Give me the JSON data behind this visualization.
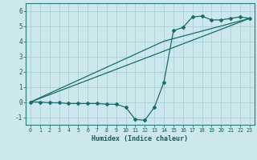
{
  "xlabel": "Humidex (Indice chaleur)",
  "background_color": "#cce8ec",
  "grid_color": "#b0d4d8",
  "line_color": "#1a6b6b",
  "xlim": [
    -0.5,
    23.5
  ],
  "ylim": [
    -1.5,
    6.5
  ],
  "yticks": [
    -1,
    0,
    1,
    2,
    3,
    4,
    5,
    6
  ],
  "xticks": [
    0,
    1,
    2,
    3,
    4,
    5,
    6,
    7,
    8,
    9,
    10,
    11,
    12,
    13,
    14,
    15,
    16,
    17,
    18,
    19,
    20,
    21,
    22,
    23
  ],
  "line1_x": [
    0,
    1,
    2,
    3,
    4,
    5,
    6,
    7,
    8,
    9,
    10,
    11,
    12,
    13,
    14,
    15,
    16,
    17,
    18,
    19,
    20,
    21,
    22,
    23
  ],
  "line1_y": [
    0.0,
    0.0,
    -0.05,
    -0.05,
    -0.1,
    -0.1,
    -0.1,
    -0.1,
    -0.15,
    -0.15,
    -0.35,
    -1.15,
    -1.2,
    -0.35,
    1.3,
    4.7,
    4.9,
    5.6,
    5.65,
    5.4,
    5.4,
    5.5,
    5.6,
    5.5
  ],
  "line2_x": [
    0,
    23
  ],
  "line2_y": [
    0.0,
    5.5
  ],
  "line3_x": [
    0,
    14,
    23
  ],
  "line3_y": [
    0.0,
    4.0,
    5.5
  ],
  "xlabel_fontsize": 6.0,
  "tick_fontsize_x": 4.8,
  "tick_fontsize_y": 5.5
}
